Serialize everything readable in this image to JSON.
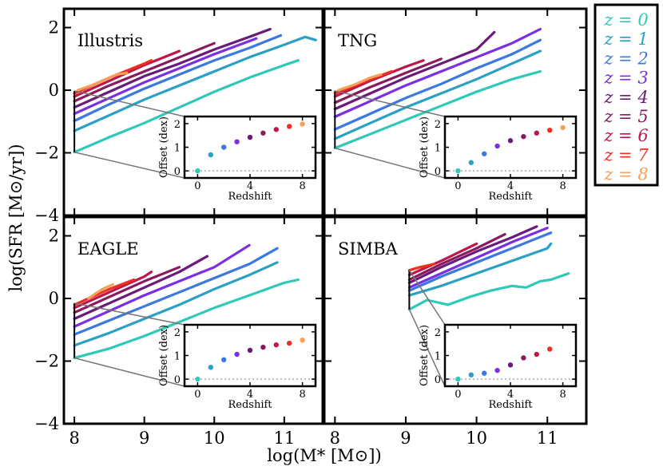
{
  "chart_data": {
    "type": "line",
    "xlabel": "log(M* [M⊙])",
    "ylabel": "log(SFR [M⊙/yr])",
    "xlim": [
      7.85,
      11.55
    ],
    "ylim": [
      -4,
      2.6
    ],
    "xticks": [
      "8",
      "9",
      "10",
      "11"
    ],
    "yticks": [
      "2",
      "0",
      "−2",
      "−4"
    ],
    "legend": {
      "position": "outside-right",
      "entries": [
        "z = 0",
        "z = 1",
        "z = 2",
        "z = 3",
        "z = 4",
        "z = 5",
        "z = 6",
        "z = 7",
        "z = 8"
      ]
    },
    "series_colors": [
      "#2ec9b8",
      "#2aa0c4",
      "#3b78e0",
      "#7a2fe0",
      "#6b1a7a",
      "#8a1a5e",
      "#c0174a",
      "#ee3020",
      "#f7a05a"
    ],
    "inset": {
      "xlabel": "Redshift",
      "ylabel": "Offset (dex)",
      "xlim": [
        -1,
        9
      ],
      "ylim": [
        -0.3,
        2.3
      ],
      "xticks": [
        "0",
        "4",
        "8"
      ],
      "yticks": [
        "0",
        "1",
        "2"
      ]
    },
    "panels": [
      {
        "title": "Illustris",
        "bracket": {
          "x": 8.0,
          "low": -1.98,
          "high": -0.02
        },
        "curves": [
          {
            "z": 0,
            "x": [
              8.0,
              8.5,
              9.0,
              9.5,
              10.0,
              10.5,
              11.0,
              11.2
            ],
            "y": [
              -1.98,
              -1.5,
              -1.05,
              -0.55,
              -0.05,
              0.4,
              0.8,
              0.95
            ]
          },
          {
            "z": 1,
            "x": [
              8.0,
              8.5,
              9.0,
              9.5,
              10.0,
              10.5,
              11.0,
              11.3,
              11.45
            ],
            "y": [
              -1.3,
              -0.8,
              -0.3,
              0.15,
              0.6,
              1.05,
              1.45,
              1.7,
              1.6
            ]
          },
          {
            "z": 2,
            "x": [
              8.0,
              8.5,
              9.0,
              9.5,
              10.0,
              10.5,
              10.95
            ],
            "y": [
              -0.98,
              -0.45,
              0.05,
              0.5,
              0.95,
              1.35,
              1.75
            ]
          },
          {
            "z": 3,
            "x": [
              8.0,
              8.5,
              9.0,
              9.5,
              10.0,
              10.6
            ],
            "y": [
              -0.75,
              -0.25,
              0.25,
              0.7,
              1.15,
              1.65
            ]
          },
          {
            "z": 4,
            "x": [
              8.0,
              8.5,
              9.0,
              9.5,
              10.0,
              10.5,
              10.8
            ],
            "y": [
              -0.55,
              -0.05,
              0.45,
              0.85,
              1.3,
              1.7,
              1.95
            ]
          },
          {
            "z": 5,
            "x": [
              8.0,
              8.5,
              9.0,
              9.5,
              10.0
            ],
            "y": [
              -0.35,
              0.15,
              0.6,
              1.05,
              1.5
            ]
          },
          {
            "z": 6,
            "x": [
              8.0,
              8.5,
              9.0,
              9.5
            ],
            "y": [
              -0.2,
              0.3,
              0.8,
              1.25
            ]
          },
          {
            "z": 7,
            "x": [
              8.0,
              8.5,
              9.0,
              9.1
            ],
            "y": [
              -0.1,
              0.4,
              0.85,
              0.95
            ]
          },
          {
            "z": 8,
            "x": [
              8.05,
              8.3,
              8.6,
              8.75
            ],
            "y": [
              0.0,
              0.2,
              0.5,
              0.55
            ]
          }
        ],
        "offsets": [
          {
            "z": 0,
            "offset": 0.0
          },
          {
            "z": 1,
            "offset": 0.68
          },
          {
            "z": 2,
            "offset": 1.0
          },
          {
            "z": 3,
            "offset": 1.23
          },
          {
            "z": 4,
            "offset": 1.42
          },
          {
            "z": 5,
            "offset": 1.6
          },
          {
            "z": 6,
            "offset": 1.75
          },
          {
            "z": 7,
            "offset": 1.88
          },
          {
            "z": 8,
            "offset": 1.98
          }
        ]
      },
      {
        "title": "TNG",
        "bracket": {
          "x": 8.0,
          "low": -1.85,
          "high": -0.02
        },
        "curves": [
          {
            "z": 0,
            "x": [
              8.0,
              8.5,
              9.0,
              9.5,
              10.0,
              10.5,
              10.9
            ],
            "y": [
              -1.85,
              -1.4,
              -0.95,
              -0.5,
              -0.05,
              0.35,
              0.6
            ]
          },
          {
            "z": 1,
            "x": [
              8.0,
              8.5,
              9.0,
              9.5,
              10.0,
              10.5,
              10.9
            ],
            "y": [
              -1.55,
              -1.05,
              -0.55,
              -0.1,
              0.35,
              0.85,
              1.25
            ]
          },
          {
            "z": 2,
            "x": [
              8.0,
              8.5,
              9.0,
              9.5,
              10.0,
              10.5,
              10.9
            ],
            "y": [
              -1.25,
              -0.75,
              -0.25,
              0.2,
              0.7,
              1.15,
              1.6
            ]
          },
          {
            "z": 3,
            "x": [
              8.0,
              8.5,
              9.0,
              9.5,
              10.0,
              10.5,
              10.9
            ],
            "y": [
              -0.85,
              -0.35,
              0.15,
              0.6,
              1.05,
              1.5,
              1.95
            ]
          },
          {
            "z": 4,
            "x": [
              8.0,
              8.5,
              9.0,
              9.5,
              10.0,
              10.25
            ],
            "y": [
              -0.6,
              -0.1,
              0.4,
              0.85,
              1.3,
              1.85
            ]
          },
          {
            "z": 5,
            "x": [
              8.0,
              8.5,
              9.0,
              9.5
            ],
            "y": [
              -0.4,
              0.1,
              0.55,
              1.0
            ]
          },
          {
            "z": 6,
            "x": [
              8.0,
              8.5,
              9.0,
              9.25
            ],
            "y": [
              -0.2,
              0.3,
              0.75,
              0.95
            ]
          },
          {
            "z": 7,
            "x": [
              8.0,
              8.5,
              8.8
            ],
            "y": [
              -0.1,
              0.35,
              0.6
            ]
          },
          {
            "z": 8,
            "x": [
              8.05,
              8.3,
              8.5,
              8.65
            ],
            "y": [
              0.0,
              0.2,
              0.4,
              0.5
            ]
          }
        ],
        "offsets": [
          {
            "z": 0,
            "offset": 0.0
          },
          {
            "z": 1,
            "offset": 0.35
          },
          {
            "z": 2,
            "offset": 0.72
          },
          {
            "z": 3,
            "offset": 1.05
          },
          {
            "z": 4,
            "offset": 1.28
          },
          {
            "z": 5,
            "offset": 1.45
          },
          {
            "z": 6,
            "offset": 1.6
          },
          {
            "z": 7,
            "offset": 1.72
          },
          {
            "z": 8,
            "offset": 1.83
          }
        ]
      },
      {
        "title": "EAGLE",
        "bracket": {
          "x": 8.0,
          "low": -1.9,
          "high": -0.15
        },
        "curves": [
          {
            "z": 0,
            "x": [
              8.0,
              8.5,
              9.0,
              9.5,
              10.0,
              10.5,
              11.0,
              11.2
            ],
            "y": [
              -1.9,
              -1.6,
              -1.2,
              -0.75,
              -0.3,
              0.1,
              0.5,
              0.6
            ]
          },
          {
            "z": 1,
            "x": [
              8.0,
              8.5,
              9.0,
              9.5,
              10.0,
              10.5,
              10.9
            ],
            "y": [
              -1.5,
              -1.1,
              -0.65,
              -0.2,
              0.3,
              0.75,
              1.15
            ]
          },
          {
            "z": 2,
            "x": [
              8.0,
              8.5,
              9.0,
              9.5,
              10.0,
              10.5,
              10.9
            ],
            "y": [
              -1.15,
              -0.7,
              -0.25,
              0.2,
              0.65,
              1.1,
              1.6
            ]
          },
          {
            "z": 3,
            "x": [
              8.0,
              8.5,
              9.0,
              9.5,
              10.0,
              10.5
            ],
            "y": [
              -0.9,
              -0.4,
              0.1,
              0.55,
              1.0,
              1.7
            ]
          },
          {
            "z": 4,
            "x": [
              8.0,
              8.5,
              9.0,
              9.5,
              9.9
            ],
            "y": [
              -0.65,
              -0.15,
              0.35,
              0.85,
              1.35
            ]
          },
          {
            "z": 5,
            "x": [
              8.0,
              8.5,
              9.0,
              9.5
            ],
            "y": [
              -0.45,
              0.05,
              0.55,
              1.0
            ]
          },
          {
            "z": 6,
            "x": [
              8.0,
              8.5,
              9.0,
              9.1
            ],
            "y": [
              -0.3,
              0.2,
              0.7,
              0.85
            ]
          },
          {
            "z": 7,
            "x": [
              8.0,
              8.5,
              8.85
            ],
            "y": [
              -0.2,
              0.3,
              0.6
            ]
          },
          {
            "z": 8,
            "x": [
              8.2,
              8.4,
              8.55
            ],
            "y": [
              0.0,
              0.3,
              0.45
            ]
          }
        ],
        "offsets": [
          {
            "z": 0,
            "offset": 0.0
          },
          {
            "z": 1,
            "offset": 0.5
          },
          {
            "z": 2,
            "offset": 0.82
          },
          {
            "z": 3,
            "offset": 1.05
          },
          {
            "z": 4,
            "offset": 1.22
          },
          {
            "z": 5,
            "offset": 1.35
          },
          {
            "z": 6,
            "offset": 1.45
          },
          {
            "z": 7,
            "offset": 1.52
          },
          {
            "z": 8,
            "offset": 1.65
          }
        ]
      },
      {
        "title": "SIMBA",
        "bracket": {
          "x": 9.05,
          "low": -0.35,
          "high": 0.9
        },
        "curves": [
          {
            "z": 0,
            "x": [
              9.05,
              9.3,
              9.6,
              9.9,
              10.2,
              10.5,
              10.7,
              10.9,
              11.05,
              11.3
            ],
            "y": [
              -0.35,
              -0.05,
              -0.2,
              0.05,
              0.25,
              0.4,
              0.35,
              0.55,
              0.6,
              0.8
            ]
          },
          {
            "z": 1,
            "x": [
              9.05,
              9.5,
              10.0,
              10.5,
              11.0,
              11.05
            ],
            "y": [
              0.1,
              0.4,
              0.8,
              1.2,
              1.6,
              1.75
            ]
          },
          {
            "z": 2,
            "x": [
              9.05,
              9.5,
              10.0,
              10.5,
              11.05
            ],
            "y": [
              0.25,
              0.7,
              1.15,
              1.6,
              2.1
            ]
          },
          {
            "z": 3,
            "x": [
              9.05,
              9.5,
              10.0,
              10.5,
              11.0
            ],
            "y": [
              0.35,
              0.8,
              1.3,
              1.8,
              2.25
            ]
          },
          {
            "z": 4,
            "x": [
              9.05,
              9.5,
              10.0,
              10.5,
              10.85
            ],
            "y": [
              0.5,
              1.0,
              1.5,
              1.95,
              2.3
            ]
          },
          {
            "z": 5,
            "x": [
              9.05,
              9.5,
              10.0,
              10.4
            ],
            "y": [
              0.6,
              1.1,
              1.6,
              2.05
            ]
          },
          {
            "z": 6,
            "x": [
              9.05,
              9.5,
              10.0
            ],
            "y": [
              0.75,
              1.2,
              1.75
            ]
          },
          {
            "z": 7,
            "x": [
              9.05,
              9.2,
              9.4
            ],
            "y": [
              0.9,
              1.0,
              1.1
            ]
          }
        ],
        "offsets": [
          {
            "z": 0,
            "offset": 0.0
          },
          {
            "z": 1,
            "offset": 0.18
          },
          {
            "z": 2,
            "offset": 0.25
          },
          {
            "z": 3,
            "offset": 0.37
          },
          {
            "z": 4,
            "offset": 0.6
          },
          {
            "z": 5,
            "offset": 0.9
          },
          {
            "z": 6,
            "offset": 1.05
          },
          {
            "z": 7,
            "offset": 1.27
          }
        ]
      }
    ]
  }
}
